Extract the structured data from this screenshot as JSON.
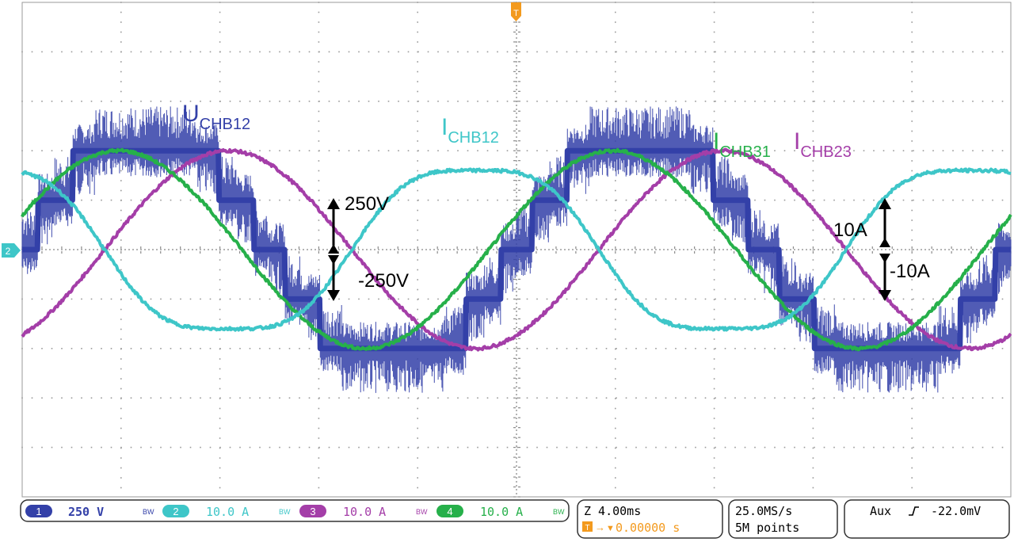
{
  "chart_data": {
    "type": "line",
    "title": "",
    "xlabel": "",
    "ylabel": "",
    "x_unit": "ms",
    "xlim": [
      -20,
      20
    ],
    "ylim": [
      -5,
      5
    ],
    "y_unit": "div",
    "grid": true,
    "waveform_period_ms": 20,
    "series": [
      {
        "name": "",
        "channel": "1",
        "kind": "voltage",
        "color": "#3340a8",
        "scale_per_div": "250 V",
        "shape": "five-level staircase",
        "levels_div": [
          -2,
          -1,
          0,
          1,
          2
        ],
        "phase_deg": 0,
        "pwm_ripple_div": 0.6
      },
      {
        "name": "",
        "channel": "2",
        "kind": "current",
        "color": "#3ec6c8",
        "scale_per_div": "10.0 A",
        "amplitude_div": 1.8,
        "phase_deg": 120,
        "harmonic_div": 0.2
      },
      {
        "name": "",
        "channel": "3",
        "kind": "current",
        "color": "#a43ea8",
        "scale_per_div": "10.0 A",
        "amplitude_div": 2.0,
        "phase_deg": -60
      },
      {
        "name": "",
        "channel": "4",
        "kind": "current",
        "color": "#26b04a",
        "scale_per_div": "10.0 A",
        "amplitude_div": 2.0,
        "phase_deg": 20
      }
    ],
    "annotations": {
      "u_chb12": {
        "main": "U",
        "sub": "CHB12",
        "color": "#3340a8"
      },
      "i_chb12": {
        "main": "I",
        "sub": "CHB12",
        "color": "#3ec6c8"
      },
      "i_chb31": {
        "main": "I",
        "sub": "CHB31",
        "color": "#26b04a"
      },
      "i_chb23": {
        "main": "I",
        "sub": "CHB23",
        "color": "#a43ea8"
      },
      "v_pos": "250V",
      "v_neg": "-250V",
      "a_pos": "10A",
      "a_neg": "-10A"
    }
  },
  "markers": {
    "trigger": "T",
    "ground_ch2": "2"
  },
  "status_bar": {
    "channels": [
      {
        "num": "1",
        "scale": "250 V",
        "bw": "BW",
        "color": "#3340a8"
      },
      {
        "num": "2",
        "scale": "10.0 A",
        "bw": "BW",
        "color": "#3ec6c8"
      },
      {
        "num": "3",
        "scale": "10.0 A",
        "bw": "BW",
        "color": "#a43ea8"
      },
      {
        "num": "4",
        "scale": "10.0 A",
        "bw": "BW",
        "color": "#26b04a"
      }
    ],
    "timebase": "Z 4.00ms",
    "trigger_position": "0.00000 s",
    "sample_rate": "25.0MS/s",
    "record_length": "5M points",
    "trigger_source": "Aux",
    "trigger_level": "-22.0mV"
  }
}
